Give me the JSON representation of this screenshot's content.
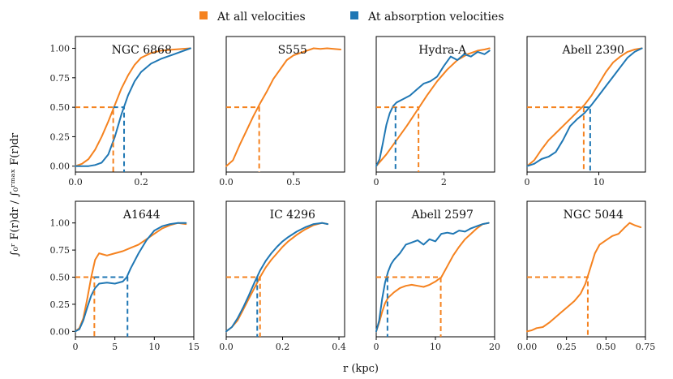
{
  "legend": {
    "all_label": "At all velocities",
    "abs_label": "At absorption velocities"
  },
  "colors": {
    "all": "#f5821f",
    "abs": "#1f77b4"
  },
  "xlabel": "r (kpc)",
  "ylabel": "∫₀ʳ F(r)dr / ∫₀ʳᵐᵃˣ F(r)dr",
  "chart_data": [
    {
      "type": "line",
      "title": "NGC 6868",
      "xlim": [
        0,
        0.36
      ],
      "ylim": [
        -0.05,
        1.1
      ],
      "xticks": [
        0.0,
        0.2
      ],
      "xtick_labels": [
        "0.0",
        "0.2"
      ],
      "yticks": [
        0.0,
        0.25,
        0.5,
        0.75,
        1.0
      ],
      "ytick_labels": [
        "0.00",
        "0.25",
        "0.50",
        "0.75",
        "1.00"
      ],
      "series": [
        {
          "name": "At all velocities",
          "x": [
            0,
            0.02,
            0.04,
            0.06,
            0.08,
            0.1,
            0.12,
            0.14,
            0.16,
            0.18,
            0.2,
            0.23,
            0.26,
            0.3,
            0.35
          ],
          "y": [
            0,
            0.02,
            0.06,
            0.14,
            0.25,
            0.38,
            0.52,
            0.66,
            0.77,
            0.86,
            0.92,
            0.96,
            0.98,
            0.99,
            1.0
          ]
        },
        {
          "name": "At absorption velocities",
          "x": [
            0,
            0.04,
            0.06,
            0.08,
            0.1,
            0.12,
            0.14,
            0.16,
            0.18,
            0.2,
            0.23,
            0.26,
            0.3,
            0.35
          ],
          "y": [
            0,
            0.0,
            0.01,
            0.03,
            0.1,
            0.25,
            0.44,
            0.6,
            0.72,
            0.8,
            0.87,
            0.91,
            0.95,
            1.0
          ]
        }
      ],
      "median": {
        "all": 0.115,
        "abs": 0.148
      }
    },
    {
      "type": "line",
      "title": "S555",
      "xlim": [
        0,
        0.88
      ],
      "ylim": [
        -0.05,
        1.1
      ],
      "xticks": [
        0.0,
        0.5
      ],
      "xtick_labels": [
        "0.0",
        "0.5"
      ],
      "yticks": [],
      "ytick_labels": [],
      "series": [
        {
          "name": "At all velocities",
          "x": [
            0,
            0.05,
            0.1,
            0.15,
            0.2,
            0.25,
            0.3,
            0.35,
            0.4,
            0.45,
            0.5,
            0.55,
            0.6,
            0.65,
            0.7,
            0.75,
            0.8,
            0.85
          ],
          "y": [
            0,
            0.05,
            0.18,
            0.3,
            0.42,
            0.53,
            0.63,
            0.74,
            0.82,
            0.9,
            0.94,
            0.96,
            0.98,
            1.0,
            0.995,
            1.0,
            0.995,
            0.99
          ]
        }
      ],
      "median": {
        "all": 0.245
      }
    },
    {
      "type": "line",
      "title": "Hydra-A",
      "xlim": [
        0,
        3.5
      ],
      "ylim": [
        -0.05,
        1.1
      ],
      "xticks": [
        0,
        2
      ],
      "xtick_labels": [
        "0",
        "2"
      ],
      "yticks": [],
      "ytick_labels": [],
      "series": [
        {
          "name": "At all velocities",
          "x": [
            0,
            0.3,
            0.6,
            0.9,
            1.2,
            1.5,
            1.8,
            2.1,
            2.4,
            2.7,
            3.0,
            3.2,
            3.35
          ],
          "y": [
            0,
            0.1,
            0.22,
            0.34,
            0.47,
            0.6,
            0.72,
            0.82,
            0.9,
            0.95,
            0.98,
            0.99,
            1.0
          ]
        },
        {
          "name": "At absorption velocities",
          "x": [
            0,
            0.1,
            0.2,
            0.3,
            0.4,
            0.5,
            0.6,
            0.8,
            1.0,
            1.2,
            1.4,
            1.6,
            1.8,
            2.0,
            2.2,
            2.4,
            2.6,
            2.8,
            3.0,
            3.2,
            3.35
          ],
          "y": [
            0,
            0.06,
            0.2,
            0.35,
            0.45,
            0.51,
            0.54,
            0.57,
            0.6,
            0.65,
            0.7,
            0.72,
            0.76,
            0.85,
            0.93,
            0.9,
            0.95,
            0.93,
            0.97,
            0.95,
            0.98
          ]
        }
      ],
      "median": {
        "all": 1.25,
        "abs": 0.57
      }
    },
    {
      "type": "line",
      "title": "Abell 2390",
      "xlim": [
        0,
        16.5
      ],
      "ylim": [
        -0.05,
        1.1
      ],
      "xticks": [
        0,
        10
      ],
      "xtick_labels": [
        "0",
        "10"
      ],
      "yticks": [],
      "ytick_labels": [],
      "series": [
        {
          "name": "At all velocities",
          "x": [
            0,
            1,
            2,
            3,
            4,
            5,
            6,
            7,
            8,
            9,
            10,
            11,
            12,
            13,
            14,
            15,
            16
          ],
          "y": [
            0,
            0.05,
            0.14,
            0.22,
            0.28,
            0.34,
            0.4,
            0.46,
            0.52,
            0.6,
            0.7,
            0.8,
            0.88,
            0.93,
            0.97,
            0.99,
            1.0
          ]
        },
        {
          "name": "At absorption velocities",
          "x": [
            0,
            1,
            2,
            3,
            4,
            5,
            6,
            7,
            8,
            9,
            10,
            11,
            12,
            13,
            14,
            15,
            16
          ],
          "y": [
            0,
            0.02,
            0.06,
            0.08,
            0.12,
            0.22,
            0.34,
            0.4,
            0.45,
            0.52,
            0.6,
            0.68,
            0.76,
            0.84,
            0.92,
            0.97,
            1.0
          ]
        }
      ],
      "median": {
        "all": 7.9,
        "abs": 8.8
      }
    },
    {
      "type": "line",
      "title": "A1644",
      "xlim": [
        0,
        15
      ],
      "ylim": [
        -0.05,
        1.2
      ],
      "xticks": [
        0,
        5,
        10,
        15
      ],
      "xtick_labels": [
        "0",
        "5",
        "10",
        "15"
      ],
      "yticks": [
        0.0,
        0.25,
        0.5,
        0.75,
        1.0
      ],
      "ytick_labels": [
        "0.00",
        "0.25",
        "0.50",
        "0.75",
        "1.00"
      ],
      "series": [
        {
          "name": "At all velocities",
          "x": [
            0,
            0.5,
            1,
            1.5,
            2,
            2.5,
            3,
            3.5,
            4,
            5,
            6,
            7,
            8,
            9,
            10,
            11,
            12,
            13,
            14
          ],
          "y": [
            0,
            0.03,
            0.12,
            0.3,
            0.5,
            0.66,
            0.72,
            0.71,
            0.7,
            0.72,
            0.74,
            0.77,
            0.8,
            0.85,
            0.9,
            0.95,
            0.98,
            1.0,
            0.99
          ]
        },
        {
          "name": "At absorption velocities",
          "x": [
            0,
            0.5,
            1,
            1.5,
            2,
            2.5,
            3,
            4,
            5,
            6,
            6.5,
            7,
            8,
            9,
            10,
            11,
            12,
            13,
            14
          ],
          "y": [
            0,
            0.02,
            0.1,
            0.22,
            0.33,
            0.4,
            0.44,
            0.45,
            0.44,
            0.46,
            0.5,
            0.58,
            0.72,
            0.84,
            0.93,
            0.97,
            0.99,
            1.0,
            1.0
          ]
        }
      ],
      "median": {
        "all": 2.4,
        "abs": 6.6
      }
    },
    {
      "type": "line",
      "title": "IC 4296",
      "xlim": [
        0,
        0.42
      ],
      "ylim": [
        -0.05,
        1.2
      ],
      "xticks": [
        0.0,
        0.2,
        0.4
      ],
      "xtick_labels": [
        "0.0",
        "0.2",
        "0.4"
      ],
      "yticks": [],
      "ytick_labels": [],
      "series": [
        {
          "name": "At all velocities",
          "x": [
            0,
            0.02,
            0.04,
            0.06,
            0.08,
            0.1,
            0.12,
            0.14,
            0.16,
            0.18,
            0.2,
            0.22,
            0.25,
            0.28,
            0.31,
            0.34,
            0.36
          ],
          "y": [
            0,
            0.04,
            0.1,
            0.2,
            0.3,
            0.4,
            0.5,
            0.59,
            0.66,
            0.72,
            0.78,
            0.83,
            0.89,
            0.94,
            0.98,
            1.0,
            0.99
          ]
        },
        {
          "name": "At absorption velocities",
          "x": [
            0,
            0.02,
            0.04,
            0.06,
            0.08,
            0.1,
            0.12,
            0.14,
            0.16,
            0.18,
            0.2,
            0.22,
            0.25,
            0.28,
            0.31,
            0.34,
            0.36
          ],
          "y": [
            0,
            0.04,
            0.12,
            0.22,
            0.33,
            0.45,
            0.56,
            0.65,
            0.72,
            0.78,
            0.83,
            0.87,
            0.92,
            0.96,
            0.99,
            1.0,
            0.99
          ]
        }
      ],
      "median": {
        "all": 0.12,
        "abs": 0.11
      }
    },
    {
      "type": "line",
      "title": "Abell 2597",
      "xlim": [
        0,
        20
      ],
      "ylim": [
        -0.05,
        1.2
      ],
      "xticks": [
        0,
        10,
        20
      ],
      "xtick_labels": [
        "0",
        "10",
        "20"
      ],
      "yticks": [],
      "ytick_labels": [],
      "series": [
        {
          "name": "At all velocities",
          "x": [
            0,
            0.5,
            1,
            1.5,
            2,
            3,
            4,
            5,
            6,
            7,
            8,
            9,
            10,
            11,
            12,
            13,
            14,
            15,
            16,
            17,
            18,
            19
          ],
          "y": [
            0,
            0.08,
            0.18,
            0.26,
            0.31,
            0.36,
            0.4,
            0.42,
            0.43,
            0.42,
            0.41,
            0.43,
            0.46,
            0.5,
            0.6,
            0.7,
            0.78,
            0.85,
            0.9,
            0.95,
            0.99,
            1.0
          ]
        },
        {
          "name": "At absorption velocities",
          "x": [
            0,
            0.5,
            1,
            1.5,
            2,
            2.5,
            3,
            4,
            5,
            6,
            7,
            8,
            9,
            10,
            11,
            12,
            13,
            14,
            15,
            16,
            17,
            18,
            19
          ],
          "y": [
            0,
            0.1,
            0.3,
            0.45,
            0.55,
            0.62,
            0.66,
            0.72,
            0.8,
            0.82,
            0.84,
            0.8,
            0.85,
            0.83,
            0.9,
            0.91,
            0.9,
            0.93,
            0.92,
            0.95,
            0.97,
            0.99,
            1.0
          ]
        }
      ],
      "median": {
        "all": 10.9,
        "abs": 1.9
      }
    },
    {
      "type": "line",
      "title": "NGC 5044",
      "xlim": [
        0,
        0.75
      ],
      "ylim": [
        -0.05,
        1.2
      ],
      "xticks": [
        0.0,
        0.25,
        0.5,
        0.75
      ],
      "xtick_labels": [
        "0.00",
        "0.25",
        "0.50",
        "0.75"
      ],
      "yticks": [],
      "ytick_labels": [],
      "series": [
        {
          "name": "At all velocities",
          "x": [
            0,
            0.03,
            0.06,
            0.1,
            0.14,
            0.18,
            0.22,
            0.26,
            0.3,
            0.34,
            0.37,
            0.4,
            0.43,
            0.46,
            0.5,
            0.54,
            0.58,
            0.62,
            0.65,
            0.68,
            0.72
          ],
          "y": [
            0,
            0.01,
            0.03,
            0.04,
            0.08,
            0.13,
            0.18,
            0.23,
            0.28,
            0.35,
            0.44,
            0.58,
            0.72,
            0.8,
            0.84,
            0.88,
            0.9,
            0.96,
            1.0,
            0.98,
            0.96
          ]
        }
      ],
      "median": {
        "all": 0.385
      }
    }
  ]
}
